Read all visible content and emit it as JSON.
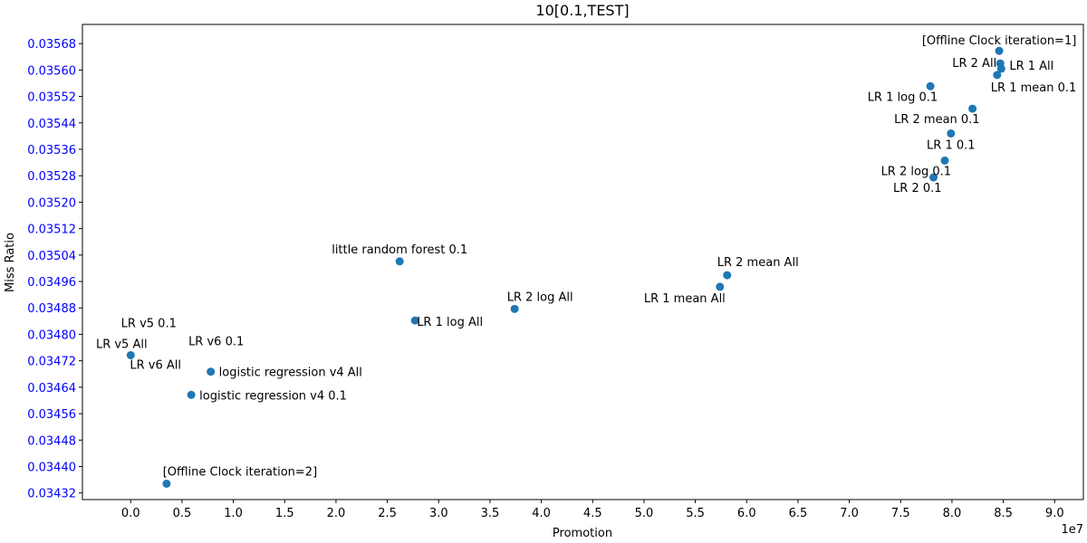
{
  "chart_data": {
    "type": "scatter",
    "title": "10[0.1,TEST]",
    "xlabel": "Promotion",
    "ylabel": "Miss Ratio",
    "x_offset_label": "1e7",
    "xlim": [
      -0.47,
      9.28
    ],
    "ylim": [
      0.0343,
      0.035738
    ],
    "xticks": [
      0.0,
      0.5,
      1.0,
      1.5,
      2.0,
      2.5,
      3.0,
      3.5,
      4.0,
      4.5,
      5.0,
      5.5,
      6.0,
      6.5,
      7.0,
      7.5,
      8.0,
      8.5,
      9.0
    ],
    "xtick_labels": [
      "0.0",
      "0.5",
      "1.0",
      "1.5",
      "2.0",
      "2.5",
      "3.0",
      "3.5",
      "4.0",
      "4.5",
      "5.0",
      "5.5",
      "6.0",
      "6.5",
      "7.0",
      "7.5",
      "8.0",
      "8.5",
      "9.0"
    ],
    "yticks": [
      0.03432,
      0.0344,
      0.03448,
      0.03456,
      0.03464,
      0.03472,
      0.0348,
      0.03488,
      0.03496,
      0.03504,
      0.03512,
      0.0352,
      0.03528,
      0.03536,
      0.03544,
      0.03552,
      0.0356,
      0.03568
    ],
    "ytick_labels": [
      "0.03432",
      "0.03440",
      "0.03448",
      "0.03456",
      "0.03464",
      "0.03472",
      "0.03480",
      "0.03488",
      "0.03496",
      "0.03504",
      "0.03512",
      "0.03520",
      "0.03528",
      "0.03536",
      "0.03544",
      "0.03552",
      "0.03560",
      "0.03568"
    ],
    "ytick_color": "#0000ff",
    "marker_color": "#1f77b4",
    "grid": false,
    "points": [
      {
        "label": "[Offline Clock iteration=1]",
        "x": 8.46,
        "y": 0.035658,
        "anchor": "middle",
        "dx": 0,
        "dy": -12
      },
      {
        "label": "LR 2 All",
        "x": 8.47,
        "y": 0.03562,
        "anchor": "end",
        "dx": -4,
        "dy": -1
      },
      {
        "label": "LR 1 All",
        "x": 8.48,
        "y": 0.035604,
        "anchor": "start",
        "dx": 9,
        "dy": -4
      },
      {
        "label": "LR 1 mean 0.1",
        "x": 8.44,
        "y": 0.035585,
        "anchor": "start",
        "dx": -7,
        "dy": 13
      },
      {
        "label": "LR 1 log 0.1",
        "x": 7.79,
        "y": 0.035551,
        "anchor": "end",
        "dx": 8,
        "dy": 11
      },
      {
        "label": "LR 2 mean 0.1",
        "x": 8.2,
        "y": 0.035483,
        "anchor": "end",
        "dx": 8,
        "dy": 11
      },
      {
        "label": "LR 1 0.1",
        "x": 7.99,
        "y": 0.035408,
        "anchor": "middle",
        "dx": 0,
        "dy": 12
      },
      {
        "label": "LR 2 log 0.1",
        "x": 7.93,
        "y": 0.035326,
        "anchor": "end",
        "dx": 7,
        "dy": 11
      },
      {
        "label": "LR 2 0.1",
        "x": 7.82,
        "y": 0.035275,
        "anchor": "end",
        "dx": 9,
        "dy": 11
      },
      {
        "label": "little random forest 0.1",
        "x": 2.62,
        "y": 0.035021,
        "anchor": "middle",
        "dx": 0,
        "dy": -14
      },
      {
        "label": "LR 2 mean All",
        "x": 5.81,
        "y": 0.034979,
        "anchor": "middle",
        "dx": 34,
        "dy": -15
      },
      {
        "label": "LR 1 mean All",
        "x": 5.74,
        "y": 0.034944,
        "anchor": "end",
        "dx": 6,
        "dy": 12
      },
      {
        "label": "LR 2 log All",
        "x": 3.74,
        "y": 0.034877,
        "anchor": "middle",
        "dx": 28,
        "dy": -14
      },
      {
        "label": "LR 1 log All",
        "x": 2.77,
        "y": 0.034842,
        "anchor": "start",
        "dx": 2,
        "dy": 1
      },
      {
        "label": "LR v5 All",
        "x": 0.0,
        "y": 0.034737,
        "anchor": "middle",
        "dx": -10,
        "dy": -13
      },
      {
        "label": "LR v5 0.1",
        "x": 0.0,
        "y": 0.034737,
        "anchor": "middle",
        "dx": 20,
        "dy": -36
      },
      {
        "label": "LR v6 0.1",
        "x": 0.78,
        "y": 0.034687,
        "anchor": "middle",
        "dx": 6,
        "dy": -34
      },
      {
        "label": "LR v6 All",
        "x": 0.78,
        "y": 0.034687,
        "anchor": "middle",
        "dx": -61,
        "dy": -8
      },
      {
        "label": "logistic regression v4 All",
        "x": 0.78,
        "y": 0.034687,
        "anchor": "start",
        "dx": 9,
        "dy": 0
      },
      {
        "label": "logistic regression v4 0.1",
        "x": 0.59,
        "y": 0.034617,
        "anchor": "start",
        "dx": 9,
        "dy": 0
      },
      {
        "label": "[Offline Clock iteration=2]",
        "x": 0.35,
        "y": 0.034348,
        "anchor": "middle",
        "dx": 81,
        "dy": -14
      }
    ]
  }
}
